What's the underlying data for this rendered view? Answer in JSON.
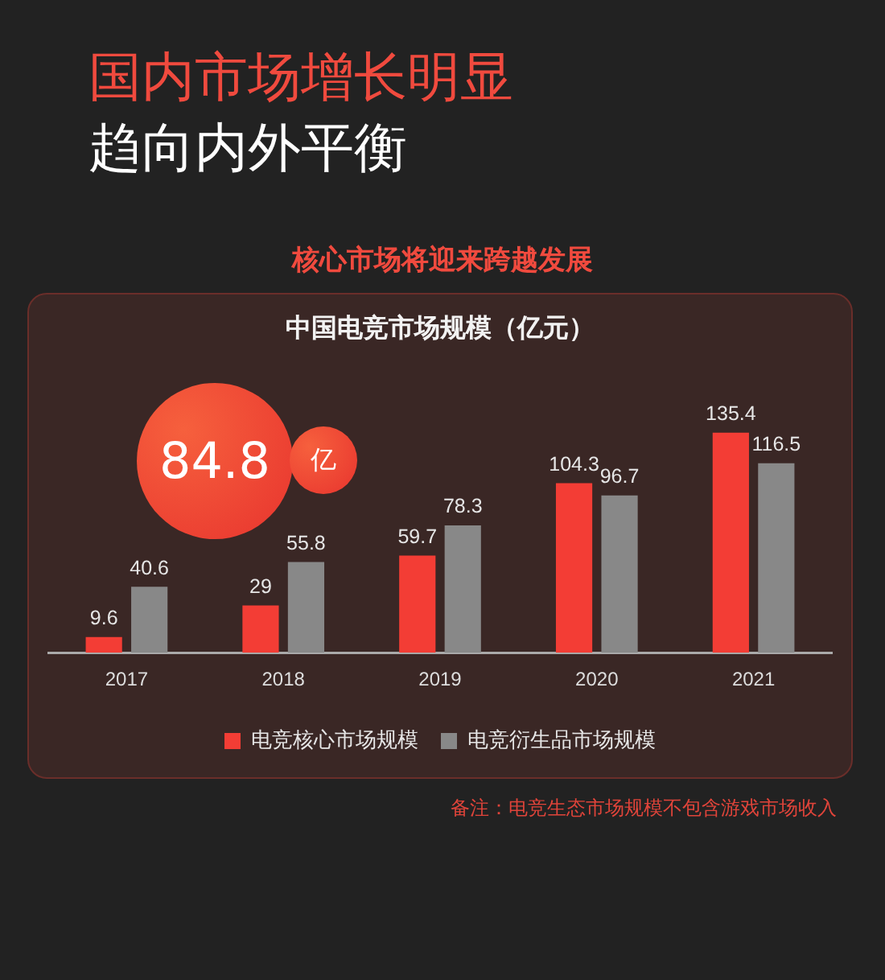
{
  "chart_data": {
    "type": "bar",
    "title": "中国电竞市场规模（亿元）",
    "subtitle": "核心市场将迎来跨越发展",
    "annotations": [
      "国内市场增长明显",
      "趋向内外平衡",
      "84.8",
      "亿",
      "备注：电竞生态市场规模不包含游戏市场收入"
    ],
    "categories": [
      "2017",
      "2018",
      "2019",
      "2020",
      "2021"
    ],
    "series": [
      {
        "name": "电竞核心市场规模",
        "color": "#f33d35",
        "values": [
          9.6,
          29,
          59.7,
          104.3,
          135.4
        ]
      },
      {
        "name": "电竞衍生品市场规模",
        "color": "#888888",
        "values": [
          40.6,
          55.8,
          78.3,
          96.7,
          116.5
        ]
      }
    ],
    "data_labels": true,
    "legend": "bottom"
  }
}
